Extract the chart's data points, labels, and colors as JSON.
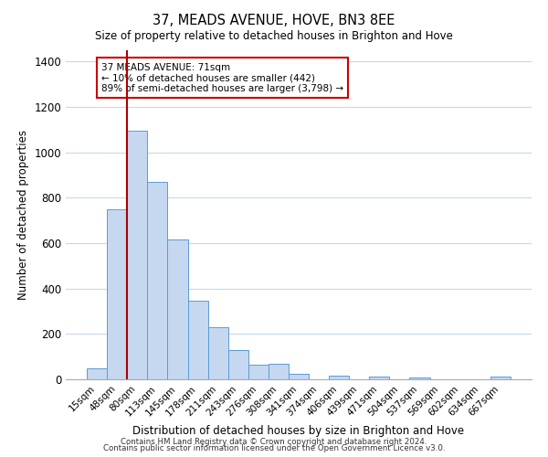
{
  "title": "37, MEADS AVENUE, HOVE, BN3 8EE",
  "subtitle": "Size of property relative to detached houses in Brighton and Hove",
  "xlabel": "Distribution of detached houses by size in Brighton and Hove",
  "ylabel": "Number of detached properties",
  "bar_labels": [
    "15sqm",
    "48sqm",
    "80sqm",
    "113sqm",
    "145sqm",
    "178sqm",
    "211sqm",
    "243sqm",
    "276sqm",
    "308sqm",
    "341sqm",
    "374sqm",
    "406sqm",
    "439sqm",
    "471sqm",
    "504sqm",
    "537sqm",
    "569sqm",
    "602sqm",
    "634sqm",
    "667sqm"
  ],
  "bar_values": [
    50,
    750,
    1095,
    868,
    615,
    348,
    228,
    130,
    63,
    68,
    23,
    0,
    18,
    0,
    14,
    0,
    10,
    0,
    0,
    0,
    13
  ],
  "bar_color": "#c5d8f0",
  "bar_edge_color": "#5b9bd5",
  "vline_color": "#aa0000",
  "annotation_text": "37 MEADS AVENUE: 71sqm\n← 10% of detached houses are smaller (442)\n89% of semi-detached houses are larger (3,798) →",
  "annotation_box_color": "#ffffff",
  "annotation_box_edge_color": "#cc0000",
  "ylim": [
    0,
    1450
  ],
  "yticks": [
    0,
    200,
    400,
    600,
    800,
    1000,
    1200,
    1400
  ],
  "footer1": "Contains HM Land Registry data © Crown copyright and database right 2024.",
  "footer2": "Contains public sector information licensed under the Open Government Licence v3.0.",
  "bg_color": "#ffffff",
  "grid_color": "#c8d8e8"
}
